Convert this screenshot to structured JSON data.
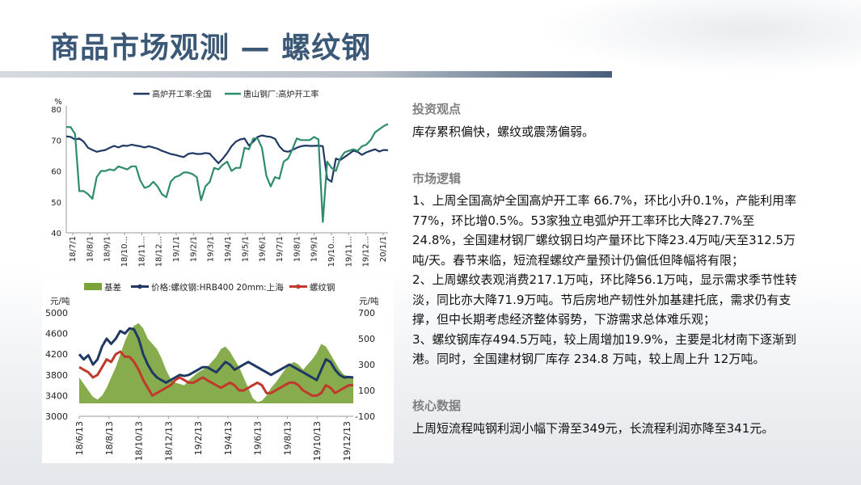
{
  "slide": {
    "title": "商品市场观测 — 螺纹钢"
  },
  "viewpoint": {
    "heading": "投资观点",
    "text": "库存累积偏快，螺纹或震荡偏弱。"
  },
  "logic": {
    "heading": "市场逻辑",
    "items": [
      "1、上周全国高炉全国高炉开工率 66.7%，环比小升0.1%，产能利用率77%，环比增0.5%。53家独立电弧炉开工率环比大降27.7%至24.8%，全国建材钢厂螺纹钢日均产量环比下降23.4万吨/天至312.5万吨/天。春节来临，短流程螺纹产量预计仍偏低但降幅将有限；",
      "2、上周螺纹表观消费217.1万吨，环比降56.1万吨，显示需求季节性转淡，同比亦大降71.9万吨。节后房地产韧性外加基建托底，需求仍有支撑，但中长期考虑经济整体弱势，下游需求总体难乐观；",
      "3、螺纹钢库存494.5万吨，较上周增加19.9%，主要是北材南下逐渐到港。同时，全国建材钢厂库存 234.8 万吨，较上周上升 12万吨。"
    ]
  },
  "core": {
    "heading": "核心数据",
    "text": "上周短流程吨钢利润小幅下滑至349元，长流程利润亦降至341元。"
  },
  "chart_data": [
    {
      "type": "line",
      "ylabel": "%",
      "ylim": [
        40,
        80
      ],
      "yticks": [
        40,
        50,
        60,
        70,
        80
      ],
      "xtick_labels": [
        "18/7/1",
        "18/8/1",
        "18/9/1",
        "18/10...",
        "18/11...",
        "18/12...",
        "19/1/1",
        "19/2/1",
        "19/3/1",
        "19/4/1",
        "19/5/1",
        "19/6/1",
        "19/7/1",
        "19/8/1",
        "19/9/1",
        "19/10...",
        "19/11...",
        "19/12...",
        "20/1/1"
      ],
      "legend_position": "top",
      "grid": false,
      "series": [
        {
          "name": "高炉开工率:全国",
          "color": "#1f3864",
          "values": [
            71.2,
            71,
            70.2,
            70.5,
            69.5,
            67.5,
            66.8,
            66.2,
            66.5,
            66.8,
            67.5,
            68.1,
            67.6,
            68.2,
            68.1,
            68.5,
            68.2,
            68,
            67.6,
            68,
            67.6,
            67.2,
            66.5,
            66,
            65.5,
            65.2,
            64.8,
            64.5,
            65.5,
            65.8,
            65.5,
            65.5,
            65.8,
            65.6,
            64,
            62.5,
            64,
            65.8,
            68,
            69.5,
            70.2,
            70.5,
            68.2,
            69.5,
            71,
            71.5,
            71.2,
            71,
            70.4,
            68,
            66.5,
            66.2,
            66.8,
            67.5,
            68,
            68.2,
            68.1,
            68.1,
            68.2,
            68,
            57.5,
            56.5,
            64,
            63.5,
            64.5,
            65.5,
            66.5,
            66.2,
            65.2,
            66,
            66.5,
            67,
            66.3,
            66.8,
            66.7
          ]
        },
        {
          "name": "唐山钢厂:高炉开工率",
          "color": "#2e8b6e",
          "values": [
            74.2,
            74.2,
            72,
            53.5,
            53.5,
            52.5,
            51,
            58,
            60,
            60,
            60.5,
            60.2,
            61.5,
            61,
            60.5,
            61.5,
            61.5,
            57,
            54.5,
            55,
            56.5,
            55,
            52.5,
            51.5,
            56.5,
            58,
            58.5,
            59.5,
            59.5,
            59,
            58,
            50.5,
            55,
            56.5,
            61,
            60.5,
            62,
            63,
            60,
            61,
            61,
            67.5,
            67,
            70.5,
            70.5,
            67.5,
            58.5,
            55,
            58,
            57.5,
            63,
            64,
            67,
            70.5,
            70,
            70,
            70,
            71,
            70.2,
            43.5,
            63,
            61,
            60,
            64,
            66,
            66.5,
            67,
            66.5,
            68,
            68.5,
            70,
            72.5,
            73.5,
            74.5,
            75.2
          ]
        }
      ]
    },
    {
      "type": "line+area",
      "ylabel_left": "元/吨",
      "ylabel_right": "元/吨",
      "ylim_left": [
        3000,
        5000
      ],
      "ylim_right": [
        -100,
        700
      ],
      "yticks_left": [
        3000,
        3400,
        3800,
        4200,
        4600,
        5000
      ],
      "yticks_right": [
        -100,
        100,
        300,
        500,
        700
      ],
      "xtick_labels": [
        "18/6/13",
        "18/8/13",
        "18/10/13",
        "18/12/13",
        "19/2/13",
        "19/4/13",
        "19/6/13",
        "19/8/13",
        "19/10/13",
        "19/12/13"
      ],
      "legend_position": "top",
      "grid": false,
      "series": [
        {
          "name": "基差",
          "axis": "right",
          "kind": "area",
          "color": "#7aa33b",
          "values": [
            200,
            150,
            100,
            50,
            30,
            60,
            120,
            200,
            280,
            380,
            480,
            560,
            600,
            620,
            580,
            500,
            460,
            420,
            350,
            260,
            190,
            160,
            150,
            140,
            180,
            210,
            240,
            260,
            280,
            320,
            360,
            420,
            440,
            400,
            340,
            280,
            200,
            120,
            40,
            10,
            20,
            60,
            120,
            160,
            210,
            260,
            300,
            320,
            300,
            260,
            300,
            340,
            390,
            460,
            440,
            380,
            320,
            260,
            220,
            210,
            200
          ]
        },
        {
          "name": "价格:螺纹钢:HRB400 20mm:上海",
          "axis": "left",
          "kind": "line",
          "color": "#1f3864",
          "values": [
            4200,
            4100,
            4180,
            4000,
            4100,
            4350,
            4500,
            4400,
            4500,
            4650,
            4600,
            4700,
            4680,
            4500,
            4200,
            4000,
            3850,
            3750,
            3700,
            3650,
            3700,
            3750,
            3800,
            3780,
            3800,
            3850,
            3900,
            3950,
            3950,
            3900,
            3850,
            3950,
            4050,
            4000,
            3900,
            3950,
            4000,
            4050,
            4000,
            3950,
            3900,
            3850,
            3800,
            3850,
            3900,
            3950,
            4000,
            3950,
            3900,
            3850,
            3800,
            3750,
            3700,
            3900,
            4100,
            4050,
            3900,
            3800,
            3750,
            3760,
            3750
          ]
        },
        {
          "name": "螺纹钢",
          "axis": "left",
          "kind": "line",
          "color": "#c0392b",
          "values": [
            3950,
            3900,
            3850,
            3750,
            3800,
            3950,
            4100,
            4050,
            4200,
            4250,
            4150,
            4150,
            4050,
            3900,
            3700,
            3550,
            3400,
            3450,
            3500,
            3550,
            3600,
            3700,
            3750,
            3700,
            3650,
            3650,
            3700,
            3750,
            3700,
            3650,
            3600,
            3550,
            3600,
            3650,
            3600,
            3500,
            3500,
            3550,
            3600,
            3650,
            3600,
            3450,
            3450,
            3500,
            3550,
            3600,
            3650,
            3650,
            3600,
            3500,
            3450,
            3400,
            3400,
            3450,
            3600,
            3550,
            3450,
            3500,
            3550,
            3600,
            3600
          ]
        }
      ]
    }
  ]
}
